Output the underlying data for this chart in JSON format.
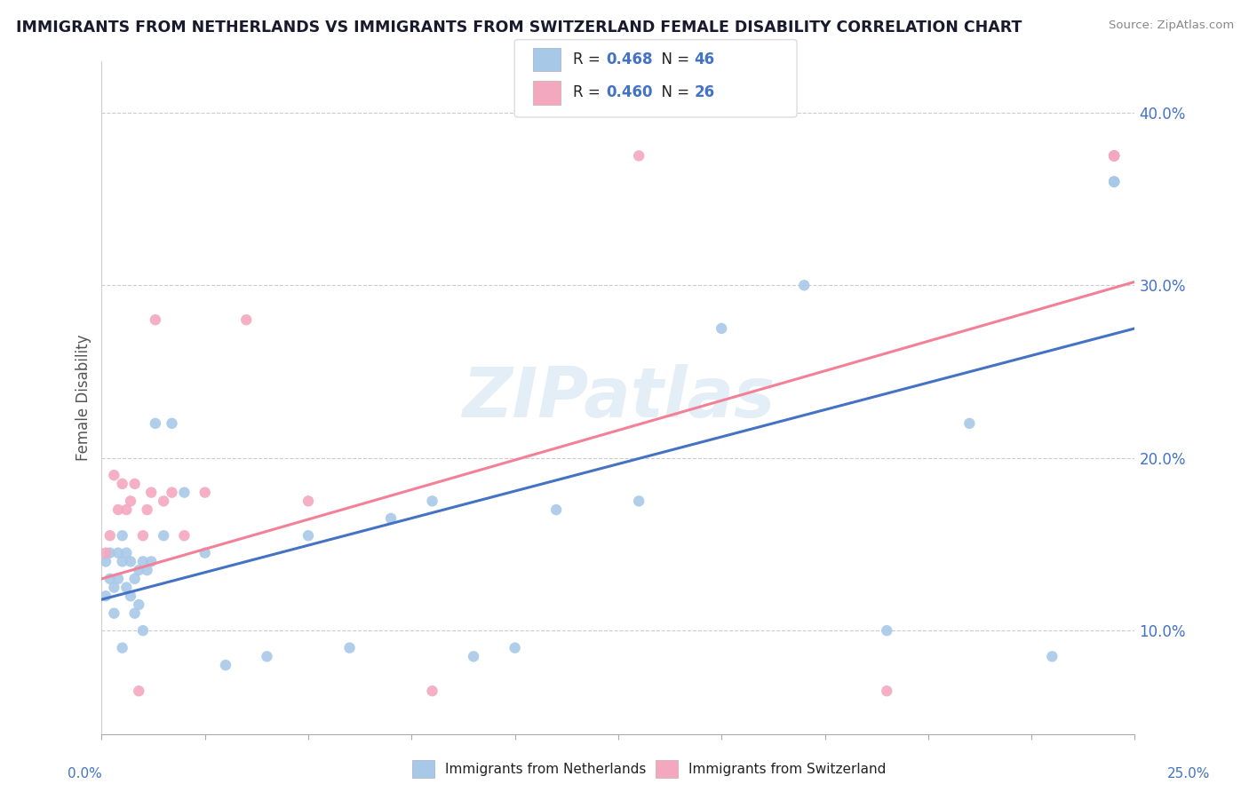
{
  "title": "IMMIGRANTS FROM NETHERLANDS VS IMMIGRANTS FROM SWITZERLAND FEMALE DISABILITY CORRELATION CHART",
  "source": "Source: ZipAtlas.com",
  "ylabel": "Female Disability",
  "xlim": [
    0.0,
    0.25
  ],
  "ylim": [
    0.04,
    0.43
  ],
  "color_blue": "#a8c8e8",
  "color_pink": "#f4a8c0",
  "line_blue": "#4472c4",
  "line_pink": "#f48098",
  "legend_label_blue": "Immigrants from Netherlands",
  "legend_label_pink": "Immigrants from Switzerland",
  "watermark": "ZIPatlas",
  "blue_x": [
    0.001,
    0.001,
    0.002,
    0.002,
    0.003,
    0.003,
    0.004,
    0.004,
    0.005,
    0.005,
    0.005,
    0.006,
    0.006,
    0.007,
    0.007,
    0.008,
    0.008,
    0.009,
    0.009,
    0.01,
    0.01,
    0.011,
    0.012,
    0.013,
    0.015,
    0.017,
    0.02,
    0.025,
    0.03,
    0.04,
    0.05,
    0.06,
    0.07,
    0.08,
    0.09,
    0.1,
    0.11,
    0.13,
    0.15,
    0.17,
    0.19,
    0.21,
    0.23,
    0.245,
    0.245,
    0.245
  ],
  "blue_y": [
    0.14,
    0.12,
    0.145,
    0.13,
    0.125,
    0.11,
    0.145,
    0.13,
    0.155,
    0.14,
    0.09,
    0.145,
    0.125,
    0.14,
    0.12,
    0.13,
    0.11,
    0.135,
    0.115,
    0.14,
    0.1,
    0.135,
    0.14,
    0.22,
    0.155,
    0.22,
    0.18,
    0.145,
    0.08,
    0.085,
    0.155,
    0.09,
    0.165,
    0.175,
    0.085,
    0.09,
    0.17,
    0.175,
    0.275,
    0.3,
    0.1,
    0.22,
    0.085,
    0.36,
    0.36,
    0.36
  ],
  "pink_x": [
    0.001,
    0.002,
    0.003,
    0.004,
    0.005,
    0.006,
    0.007,
    0.008,
    0.009,
    0.01,
    0.011,
    0.012,
    0.013,
    0.015,
    0.017,
    0.02,
    0.025,
    0.035,
    0.05,
    0.08,
    0.13,
    0.19,
    0.245,
    0.245,
    0.245,
    0.245
  ],
  "pink_y": [
    0.145,
    0.155,
    0.19,
    0.17,
    0.185,
    0.17,
    0.175,
    0.185,
    0.065,
    0.155,
    0.17,
    0.18,
    0.28,
    0.175,
    0.18,
    0.155,
    0.18,
    0.28,
    0.175,
    0.065,
    0.375,
    0.065,
    0.375,
    0.375,
    0.375,
    0.375
  ],
  "blue_line_x0": 0.0,
  "blue_line_y0": 0.118,
  "blue_line_x1": 0.25,
  "blue_line_y1": 0.275,
  "pink_line_x0": 0.0,
  "pink_line_y0": 0.13,
  "pink_line_x1": 0.25,
  "pink_line_y1": 0.302
}
